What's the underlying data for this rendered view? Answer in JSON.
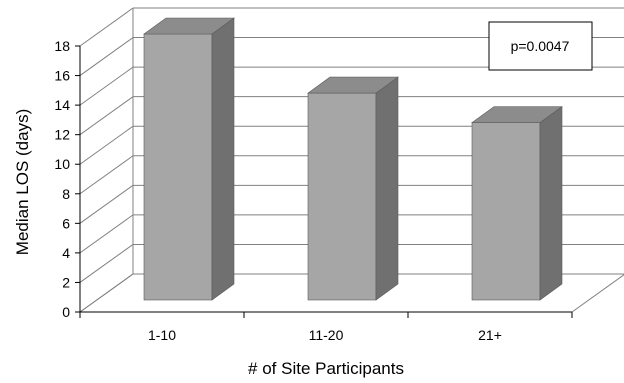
{
  "chart_data": {
    "type": "bar",
    "three_d": true,
    "categories": [
      "1-10",
      "11-20",
      "21+"
    ],
    "values": [
      18,
      14,
      12
    ],
    "xlabel": "# of Site Participants",
    "ylabel": "Median LOS (days)",
    "ylim": [
      0,
      18
    ],
    "yticks": [
      0,
      2,
      4,
      6,
      8,
      10,
      12,
      14,
      16,
      18
    ],
    "grid": true,
    "annotation": "p=0.0047",
    "bar_color": "#a6a6a6",
    "bar_side_color": "#707070",
    "bar_top_color": "#8c8c8c"
  }
}
